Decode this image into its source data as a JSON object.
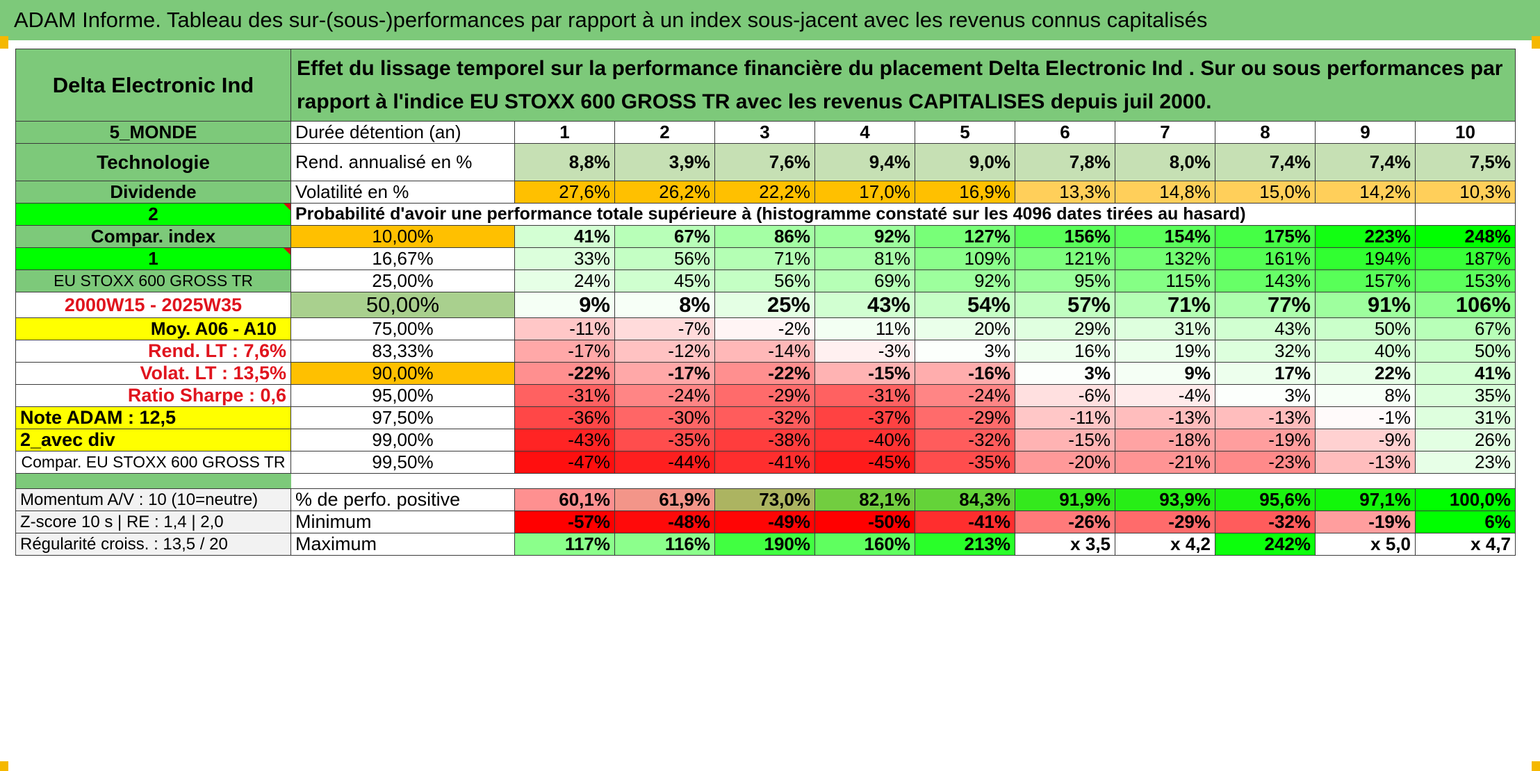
{
  "title": "ADAM Informe. Tableau des sur-(sous-)performances par rapport à un index sous-jacent avec les revenus connus capitalisés",
  "sidebar": {
    "company": "Delta Electronic Ind",
    "region": "5_MONDE",
    "sector": "Technologie",
    "dividend": "Dividende",
    "selector_a": "2",
    "compar_index": "Compar. index",
    "selector_b": "1",
    "index_name": "EU STOXX 600 GROSS TR",
    "period": "2000W15 - 2025W35",
    "moy": "Moy. A06 - A10",
    "rend_lt": "Rend. LT :   7,6%",
    "volat_lt": "Volat. LT :   13,5%",
    "sharpe": "Ratio Sharpe :   0,6",
    "note": "Note ADAM : 12,5",
    "div_mode": "2_avec div",
    "compar_full": "Compar. EU STOXX 600 GROSS TR"
  },
  "header_text": "Effet du lissage temporel sur la performance financière du placement Delta Electronic Ind . Sur ou sous performances par rapport à l'indice EU STOXX 600 GROSS TR avec les revenus CAPITALISES depuis juil 2000.",
  "labels": {
    "duree": "Durée détention (an)",
    "rend": "Rend. annualisé en %",
    "volat": "Volatilité en %",
    "proba": "Probabilité d'avoir une performance totale supérieure à (histogramme constaté sur les 4096 dates tirées au hasard)"
  },
  "years": [
    "1",
    "2",
    "3",
    "4",
    "5",
    "6",
    "7",
    "8",
    "9",
    "10"
  ],
  "rend": [
    "8,8%",
    "3,9%",
    "7,6%",
    "9,4%",
    "9,0%",
    "7,8%",
    "8,0%",
    "7,4%",
    "7,4%",
    "7,5%"
  ],
  "volat": [
    "27,6%",
    "26,2%",
    "22,2%",
    "17,0%",
    "16,9%",
    "13,3%",
    "14,8%",
    "15,0%",
    "14,2%",
    "10,3%"
  ],
  "percentile_rows": [
    {
      "p": "10,00%",
      "vals": [
        "41%",
        "67%",
        "86%",
        "92%",
        "127%",
        "156%",
        "154%",
        "175%",
        "223%",
        "248%"
      ]
    },
    {
      "p": "16,67%",
      "vals": [
        "33%",
        "56%",
        "71%",
        "81%",
        "109%",
        "121%",
        "132%",
        "161%",
        "194%",
        "187%"
      ]
    },
    {
      "p": "25,00%",
      "vals": [
        "24%",
        "45%",
        "56%",
        "69%",
        "92%",
        "95%",
        "115%",
        "143%",
        "157%",
        "153%"
      ]
    },
    {
      "p": "50,00%",
      "vals": [
        "9%",
        "8%",
        "25%",
        "43%",
        "54%",
        "57%",
        "71%",
        "77%",
        "91%",
        "106%"
      ]
    },
    {
      "p": "75,00%",
      "vals": [
        "-11%",
        "-7%",
        "-2%",
        "11%",
        "20%",
        "29%",
        "31%",
        "43%",
        "50%",
        "67%"
      ]
    },
    {
      "p": "83,33%",
      "vals": [
        "-17%",
        "-12%",
        "-14%",
        "-3%",
        "3%",
        "16%",
        "19%",
        "32%",
        "40%",
        "50%"
      ]
    },
    {
      "p": "90,00%",
      "vals": [
        "-22%",
        "-17%",
        "-22%",
        "-15%",
        "-16%",
        "3%",
        "9%",
        "17%",
        "22%",
        "41%"
      ]
    },
    {
      "p": "95,00%",
      "vals": [
        "-31%",
        "-24%",
        "-29%",
        "-31%",
        "-24%",
        "-6%",
        "-4%",
        "3%",
        "8%",
        "35%"
      ]
    },
    {
      "p": "97,50%",
      "vals": [
        "-36%",
        "-30%",
        "-32%",
        "-37%",
        "-29%",
        "-11%",
        "-13%",
        "-13%",
        "-1%",
        "31%"
      ]
    },
    {
      "p": "99,00%",
      "vals": [
        "-43%",
        "-35%",
        "-38%",
        "-40%",
        "-32%",
        "-15%",
        "-18%",
        "-19%",
        "-9%",
        "26%"
      ]
    },
    {
      "p": "99,50%",
      "vals": [
        "-47%",
        "-44%",
        "-41%",
        "-45%",
        "-35%",
        "-20%",
        "-21%",
        "-23%",
        "-13%",
        "23%"
      ]
    }
  ],
  "footer": {
    "momentum": "Momentum A/V : 10 (10=neutre)",
    "zscore": "Z-score 10 s | RE : 1,4 | 2,0",
    "regularite": "Régularité croiss. : 13,5 / 20",
    "pos_label": "% de perfo. positive",
    "min_label": "Minimum",
    "max_label": "Maximum",
    "pos": [
      "60,1%",
      "61,9%",
      "73,0%",
      "82,1%",
      "84,3%",
      "91,9%",
      "93,9%",
      "95,6%",
      "97,1%",
      "100,0%"
    ],
    "min": [
      "-57%",
      "-48%",
      "-49%",
      "-50%",
      "-41%",
      "-26%",
      "-29%",
      "-32%",
      "-19%",
      "6%"
    ],
    "max": [
      "117%",
      "116%",
      "190%",
      "160%",
      "213%",
      "x 3,5",
      "x 4,2",
      "242%",
      "x 5,0",
      "x 4,7"
    ]
  },
  "colors": {
    "header_green": "#7dc97a",
    "bright_green": "#00ff00",
    "orange": "#ffc000",
    "yellow": "#ffff00",
    "light_green": "#c6e0b4",
    "red_text": "#e0141e"
  }
}
